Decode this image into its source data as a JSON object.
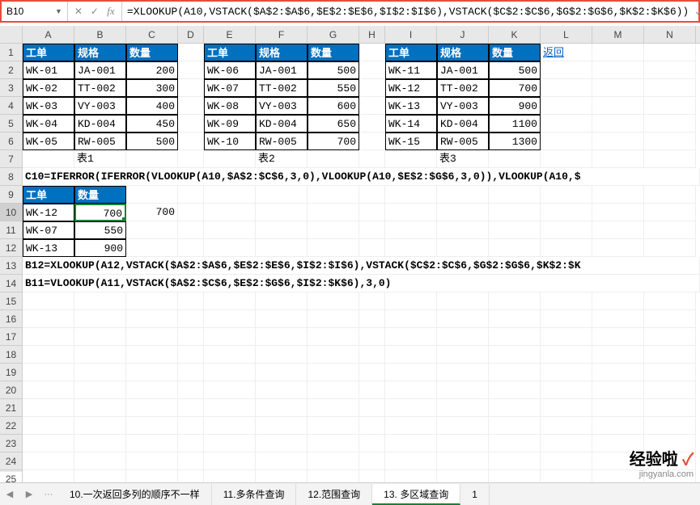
{
  "formula_bar": {
    "cell_ref": "B10",
    "formula": "=XLOOKUP(A10,VSTACK($A$2:$A$6,$E$2:$E$6,$I$2:$I$6),VSTACK($C$2:$C$6,$G$2:$G$6,$K$2:$K$6))"
  },
  "colors": {
    "header_bg": "#0070c0",
    "border_highlight": "#e74c3c",
    "selection": "#1a7f37",
    "link": "#0563c1"
  },
  "columns": [
    "A",
    "B",
    "C",
    "D",
    "E",
    "F",
    "G",
    "H",
    "I",
    "J",
    "K",
    "L",
    "M",
    "N"
  ],
  "col_widths_narrow": [
    "D",
    "H"
  ],
  "row_count": 25,
  "selected_row": 10,
  "tables": {
    "t1": {
      "headers": [
        "工单",
        "规格",
        "数量"
      ],
      "rows": [
        [
          "WK-01",
          "JA-001",
          "200"
        ],
        [
          "WK-02",
          "TT-002",
          "300"
        ],
        [
          "WK-03",
          "VY-003",
          "400"
        ],
        [
          "WK-04",
          "KD-004",
          "450"
        ],
        [
          "WK-05",
          "RW-005",
          "500"
        ]
      ],
      "label": "表1"
    },
    "t2": {
      "headers": [
        "工单",
        "规格",
        "数量"
      ],
      "rows": [
        [
          "WK-06",
          "JA-001",
          "500"
        ],
        [
          "WK-07",
          "TT-002",
          "550"
        ],
        [
          "WK-08",
          "VY-003",
          "600"
        ],
        [
          "WK-09",
          "KD-004",
          "650"
        ],
        [
          "WK-10",
          "RW-005",
          "700"
        ]
      ],
      "label": "表2"
    },
    "t3": {
      "headers": [
        "工单",
        "规格",
        "数量"
      ],
      "rows": [
        [
          "WK-11",
          "JA-001",
          "500"
        ],
        [
          "WK-12",
          "TT-002",
          "700"
        ],
        [
          "WK-13",
          "VY-003",
          "900"
        ],
        [
          "WK-14",
          "KD-004",
          "1100"
        ],
        [
          "WK-15",
          "RW-005",
          "1300"
        ]
      ],
      "label": "表3"
    },
    "lookup": {
      "headers": [
        "工单",
        "数量"
      ],
      "rows": [
        [
          "WK-12",
          "700"
        ],
        [
          "WK-07",
          "550"
        ],
        [
          "WK-13",
          "900"
        ]
      ]
    }
  },
  "extra_cells": {
    "c10": "700"
  },
  "formulas": {
    "row8": "C10=IFERROR(IFERROR(VLOOKUP(A10,$A$2:$C$6,3,0),VLOOKUP(A10,$E$2:$G$6,3,0)),VLOOKUP(A10,$",
    "row13": "B12=XLOOKUP(A12,VSTACK($A$2:$A$6,$E$2:$E$6,$I$2:$I$6),VSTACK($C$2:$C$6,$G$2:$G$6,$K$2:$K",
    "row14": "B11=VLOOKUP(A11,VSTACK($A$2:$C$6,$E$2:$G$6,$I$2:$K$6),3,0)"
  },
  "link_text": "返回",
  "tabs": {
    "items": [
      "10.一次返回多列的顺序不一样",
      "11.多条件查询",
      "12.范围查询",
      "13. 多区域查询",
      "1"
    ],
    "active_index": 3,
    "ellipsis": "···"
  },
  "watermark": {
    "text1": "经验啦",
    "check": "✓",
    "url": "jingyanla.com"
  }
}
